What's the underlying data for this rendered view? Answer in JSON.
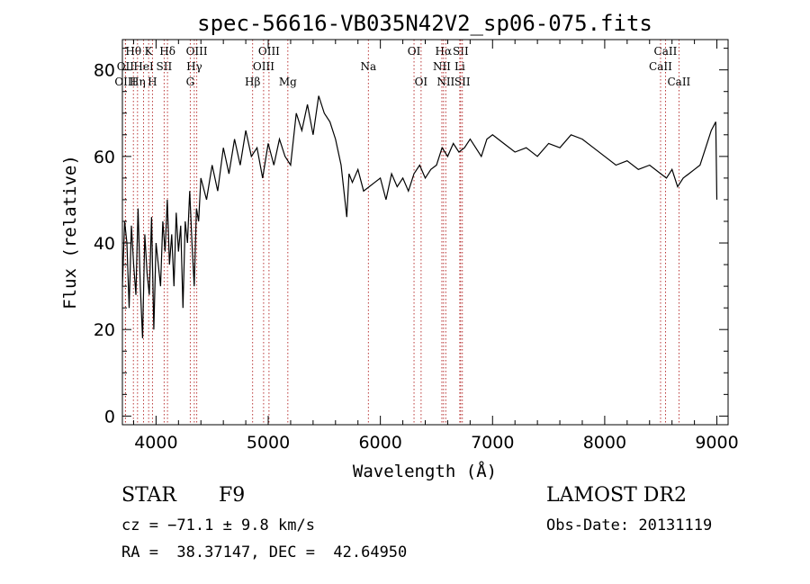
{
  "chart_data": {
    "type": "line",
    "title": "spec-56616-VB035N42V2_sp06-075.fits",
    "xlabel": "Wavelength (Å)",
    "ylabel": "Flux (relative)",
    "xlim": [
      3700,
      9100
    ],
    "ylim": [
      -2,
      87
    ],
    "xticks": [
      4000,
      5000,
      6000,
      7000,
      8000,
      9000
    ],
    "yticks": [
      0,
      20,
      40,
      60,
      80
    ],
    "grid": false,
    "series": [
      {
        "x": [
          3700,
          3720,
          3740,
          3760,
          3780,
          3800,
          3820,
          3840,
          3860,
          3880,
          3900,
          3920,
          3940,
          3960,
          3980,
          4000,
          4020,
          4040,
          4060,
          4080,
          4100,
          4120,
          4140,
          4160,
          4180,
          4200,
          4220,
          4240,
          4260,
          4280,
          4300,
          4320,
          4340,
          4360,
          4380,
          4400,
          4450,
          4500,
          4550,
          4600,
          4650,
          4700,
          4750,
          4800,
          4850,
          4900,
          4950,
          5000,
          5050,
          5100,
          5150,
          5200,
          5250,
          5300,
          5350,
          5400,
          5450,
          5500,
          5550,
          5600,
          5650,
          5700,
          5720,
          5750,
          5800,
          5850,
          5900,
          5950,
          6000,
          6050,
          6100,
          6150,
          6200,
          6250,
          6300,
          6350,
          6400,
          6450,
          6500,
          6550,
          6600,
          6650,
          6700,
          6750,
          6800,
          6850,
          6900,
          6950,
          7000,
          7100,
          7200,
          7300,
          7400,
          7500,
          7600,
          7700,
          7800,
          7900,
          8000,
          8100,
          8200,
          8300,
          8400,
          8500,
          8550,
          8600,
          8650,
          8700,
          8750,
          8800,
          8850,
          8900,
          8950,
          8990,
          9000
        ],
        "y": [
          30,
          45,
          40,
          25,
          44,
          35,
          28,
          48,
          30,
          18,
          42,
          33,
          28,
          46,
          20,
          40,
          35,
          30,
          45,
          38,
          50,
          35,
          42,
          30,
          47,
          38,
          44,
          25,
          45,
          40,
          52,
          40,
          30,
          48,
          45,
          55,
          50,
          58,
          52,
          62,
          56,
          64,
          58,
          66,
          60,
          62,
          55,
          63,
          58,
          64,
          60,
          58,
          70,
          66,
          72,
          65,
          74,
          70,
          68,
          64,
          58,
          46,
          56,
          54,
          57,
          52,
          53,
          54,
          55,
          50,
          56,
          53,
          55,
          52,
          56,
          58,
          55,
          57,
          58,
          62,
          60,
          63,
          61,
          62,
          64,
          62,
          60,
          64,
          65,
          63,
          61,
          62,
          60,
          63,
          62,
          65,
          64,
          62,
          60,
          58,
          59,
          57,
          58,
          56,
          55,
          57,
          53,
          55,
          56,
          57,
          58,
          62,
          66,
          68,
          50
        ]
      }
    ],
    "line_markers": [
      {
        "label": "Hθ",
        "x": 3798,
        "row": 1
      },
      {
        "label": "OII",
        "x": 3727,
        "row": 2
      },
      {
        "label": "OIII",
        "x": 3727,
        "row": 3
      },
      {
        "label": "K",
        "x": 3934,
        "row": 1
      },
      {
        "label": "HeI",
        "x": 3889,
        "row": 2
      },
      {
        "label": "Hη",
        "x": 3835,
        "row": 3
      },
      {
        "label": "SII",
        "x": 4072,
        "row": 2
      },
      {
        "label": "H",
        "x": 3968,
        "row": 3
      },
      {
        "label": "Hδ",
        "x": 4102,
        "row": 1
      },
      {
        "label": "OIII",
        "x": 4363,
        "row": 1
      },
      {
        "label": "Hγ",
        "x": 4341,
        "row": 2
      },
      {
        "label": "G",
        "x": 4305,
        "row": 3
      },
      {
        "label": "Hβ",
        "x": 4861,
        "row": 3
      },
      {
        "label": "OIII",
        "x": 5007,
        "row": 1
      },
      {
        "label": "OIII",
        "x": 4959,
        "row": 2
      },
      {
        "label": "Mg",
        "x": 5175,
        "row": 3
      },
      {
        "label": "Na",
        "x": 5893,
        "row": 2
      },
      {
        "label": "OI",
        "x": 6300,
        "row": 1
      },
      {
        "label": "OI",
        "x": 6363,
        "row": 3
      },
      {
        "label": "Hα",
        "x": 6563,
        "row": 1
      },
      {
        "label": "SII",
        "x": 6716,
        "row": 1
      },
      {
        "label": "NII",
        "x": 6548,
        "row": 2
      },
      {
        "label": "Li",
        "x": 6708,
        "row": 2
      },
      {
        "label": "NII",
        "x": 6583,
        "row": 3
      },
      {
        "label": "SII",
        "x": 6731,
        "row": 3
      },
      {
        "label": "CaII",
        "x": 8542,
        "row": 1
      },
      {
        "label": "CaII",
        "x": 8498,
        "row": 2
      },
      {
        "label": "CaII",
        "x": 8662,
        "row": 3
      }
    ]
  },
  "info": {
    "object_class": "STAR",
    "subclass": "F9",
    "survey": "LAMOST DR2",
    "cz": "cz = −71.1 ± 9.8 km/s",
    "obs_date": "Obs-Date: 20131119",
    "coords": "RA =  38.37147, DEC =  42.64950"
  }
}
